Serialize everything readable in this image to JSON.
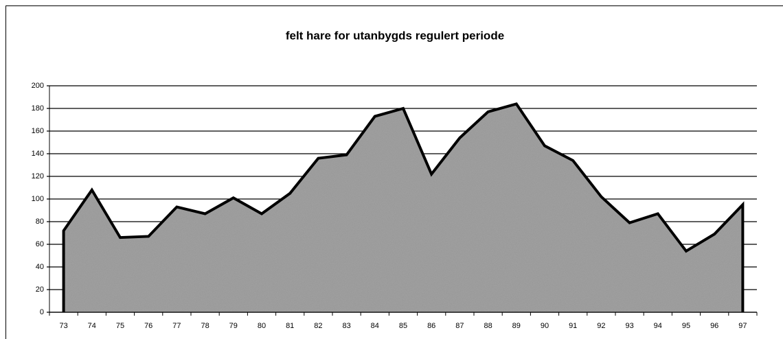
{
  "chart_data": {
    "type": "area",
    "title": "felt hare for utanbygds regulert periode",
    "categories": [
      "73",
      "74",
      "75",
      "76",
      "77",
      "78",
      "79",
      "80",
      "81",
      "82",
      "83",
      "84",
      "85",
      "86",
      "87",
      "88",
      "89",
      "90",
      "91",
      "92",
      "93",
      "94",
      "95",
      "96",
      "97"
    ],
    "values": [
      72,
      108,
      66,
      67,
      93,
      87,
      101,
      87,
      105,
      136,
      139,
      173,
      180,
      122,
      154,
      177,
      184,
      147,
      134,
      102,
      79,
      87,
      54,
      69,
      95
    ],
    "color": "#9a9a9a",
    "line_color": "#000000",
    "ylim": [
      0,
      200
    ],
    "yticks": [
      0,
      20,
      40,
      60,
      80,
      100,
      120,
      140,
      160,
      180,
      200
    ],
    "grid": true
  }
}
